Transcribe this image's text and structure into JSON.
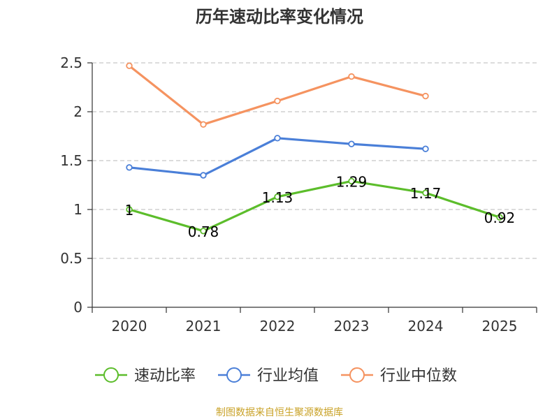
{
  "chart_data": {
    "type": "line",
    "title": "历年速动比率变化情况",
    "categories": [
      "2020",
      "2021",
      "2022",
      "2023",
      "2024",
      "2025"
    ],
    "ylim": [
      0,
      2.5
    ],
    "yticks": [
      "0",
      "0.5",
      "1",
      "1.5",
      "2",
      "2.5"
    ],
    "grid": true,
    "legend_position": "bottom",
    "series": [
      {
        "name": "速动比率",
        "color": "#5cbd2b",
        "values": [
          1,
          0.78,
          1.13,
          1.29,
          1.17,
          0.92
        ],
        "labels": [
          "1",
          "0.78",
          "1.13",
          "1.29",
          "1.17",
          "0.92"
        ]
      },
      {
        "name": "行业均值",
        "color": "#4a7fd8",
        "values": [
          1.43,
          1.35,
          1.73,
          1.67,
          1.62,
          null
        ]
      },
      {
        "name": "行业中位数",
        "color": "#f59360",
        "values": [
          2.47,
          1.87,
          2.11,
          2.36,
          2.16,
          null
        ]
      }
    ]
  },
  "source": "制图数据来自恒生聚源数据库"
}
